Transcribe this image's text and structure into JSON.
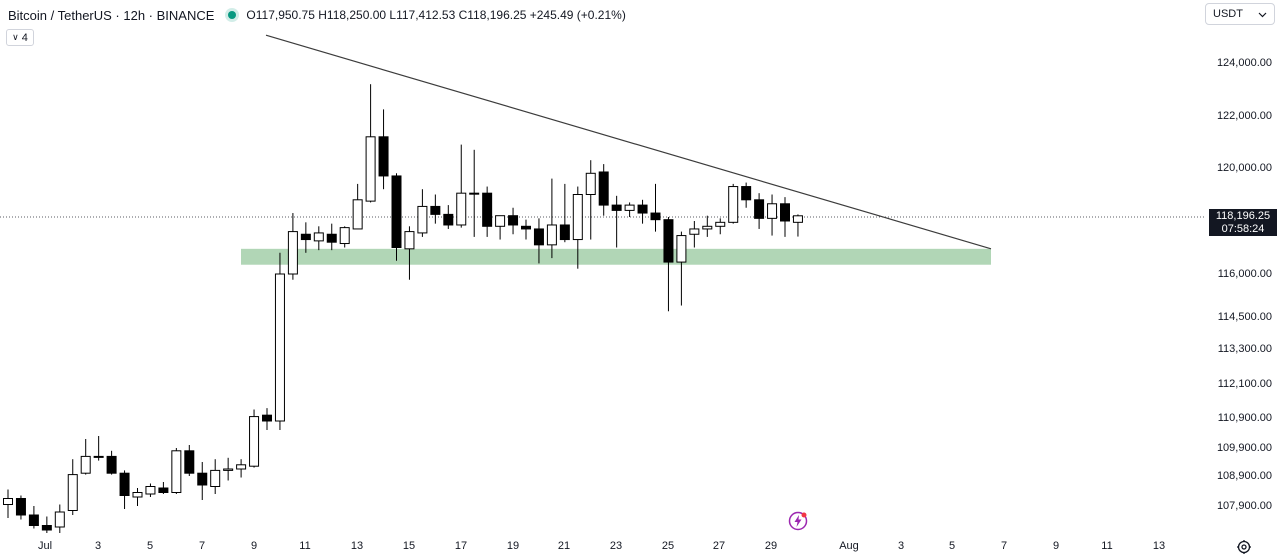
{
  "header": {
    "symbol": "Bitcoin / TetherUS · 12h · BINANCE",
    "ohlc": "O117,950.75 H118,250.00 L117,412.53 C118,196.25 +245.49 (+0.21%)",
    "status_color": "#089981"
  },
  "indicators_chip": {
    "chevron": "∨",
    "count": "4"
  },
  "currency_button": {
    "label": "USDT"
  },
  "last_price": {
    "price": "118,196.25",
    "countdown": "07:58:24"
  },
  "price_labels": [
    "124,000.00",
    "122,000.00",
    "120,000.00",
    "116,000.00",
    "114,500.00",
    "113,300.00",
    "112,100.00",
    "110,900.00",
    "109,900.00",
    "108,900.00",
    "107,900.00"
  ],
  "time_labels": [
    "Jul",
    "3",
    "5",
    "7",
    "9",
    "11",
    "13",
    "15",
    "17",
    "19",
    "21",
    "23",
    "25",
    "27",
    "29",
    "Aug",
    "3",
    "5",
    "7",
    "9",
    "11",
    "13"
  ],
  "icons": {
    "settings": "gear-icon",
    "alert": "lightning-icon"
  },
  "chart_data": {
    "type": "candlestick",
    "symbol": "BTCUSDT",
    "interval": "12h",
    "exchange": "BINANCE",
    "price_range": [
      107100,
      125800
    ],
    "last_close": 118196.25,
    "up_color": "#ffffff",
    "down_color": "#000000",
    "candles": [
      {
        "o": 107950,
        "h": 108450,
        "l": 107500,
        "c": 108150
      },
      {
        "o": 108150,
        "h": 108250,
        "l": 107450,
        "c": 107600
      },
      {
        "o": 107600,
        "h": 107900,
        "l": 107150,
        "c": 107250
      },
      {
        "o": 107250,
        "h": 107550,
        "l": 107000,
        "c": 107100
      },
      {
        "o": 107200,
        "h": 107950,
        "l": 107000,
        "c": 107700
      },
      {
        "o": 107750,
        "h": 109500,
        "l": 107600,
        "c": 108950
      },
      {
        "o": 109000,
        "h": 110200,
        "l": 108950,
        "c": 109600
      },
      {
        "o": 109600,
        "h": 110300,
        "l": 109450,
        "c": 109600
      },
      {
        "o": 109600,
        "h": 109800,
        "l": 108950,
        "c": 109000
      },
      {
        "o": 109000,
        "h": 109100,
        "l": 107800,
        "c": 108250
      },
      {
        "o": 108200,
        "h": 108500,
        "l": 107900,
        "c": 108350
      },
      {
        "o": 108300,
        "h": 108650,
        "l": 108200,
        "c": 108550
      },
      {
        "o": 108500,
        "h": 108700,
        "l": 108300,
        "c": 108350
      },
      {
        "o": 108350,
        "h": 109900,
        "l": 108300,
        "c": 109800
      },
      {
        "o": 109800,
        "h": 110000,
        "l": 108900,
        "c": 109000
      },
      {
        "o": 109000,
        "h": 109400,
        "l": 108100,
        "c": 108600
      },
      {
        "o": 108550,
        "h": 109500,
        "l": 108300,
        "c": 109100
      },
      {
        "o": 109100,
        "h": 109550,
        "l": 108750,
        "c": 109150
      },
      {
        "o": 109150,
        "h": 109500,
        "l": 108850,
        "c": 109300
      },
      {
        "o": 109250,
        "h": 111200,
        "l": 109200,
        "c": 110950
      },
      {
        "o": 111000,
        "h": 111250,
        "l": 110500,
        "c": 110800
      },
      {
        "o": 110800,
        "h": 116800,
        "l": 110500,
        "c": 116000
      },
      {
        "o": 116000,
        "h": 118300,
        "l": 115800,
        "c": 117600
      },
      {
        "o": 117500,
        "h": 117950,
        "l": 116800,
        "c": 117300
      },
      {
        "o": 117250,
        "h": 117800,
        "l": 116900,
        "c": 117550
      },
      {
        "o": 117500,
        "h": 117900,
        "l": 116900,
        "c": 117200
      },
      {
        "o": 117150,
        "h": 117800,
        "l": 117000,
        "c": 117750
      },
      {
        "o": 117700,
        "h": 119400,
        "l": 117700,
        "c": 118800
      },
      {
        "o": 118750,
        "h": 123200,
        "l": 118700,
        "c": 121200
      },
      {
        "o": 121200,
        "h": 122250,
        "l": 119200,
        "c": 119700
      },
      {
        "o": 119700,
        "h": 119800,
        "l": 116500,
        "c": 117000
      },
      {
        "o": 116950,
        "h": 117800,
        "l": 115800,
        "c": 117600
      },
      {
        "o": 117550,
        "h": 119200,
        "l": 117400,
        "c": 118550
      },
      {
        "o": 118550,
        "h": 119000,
        "l": 117900,
        "c": 118250
      },
      {
        "o": 118250,
        "h": 118600,
        "l": 117700,
        "c": 117850
      },
      {
        "o": 117850,
        "h": 120900,
        "l": 117750,
        "c": 119050
      },
      {
        "o": 119050,
        "h": 120700,
        "l": 117400,
        "c": 119050
      },
      {
        "o": 119050,
        "h": 119300,
        "l": 117400,
        "c": 117800
      },
      {
        "o": 117800,
        "h": 118200,
        "l": 117300,
        "c": 118200
      },
      {
        "o": 118200,
        "h": 118500,
        "l": 117500,
        "c": 117850
      },
      {
        "o": 117800,
        "h": 118050,
        "l": 117300,
        "c": 117700
      },
      {
        "o": 117700,
        "h": 118100,
        "l": 116400,
        "c": 117100
      },
      {
        "o": 117100,
        "h": 119600,
        "l": 116600,
        "c": 117850
      },
      {
        "o": 117850,
        "h": 119400,
        "l": 117200,
        "c": 117300
      },
      {
        "o": 117300,
        "h": 119300,
        "l": 116200,
        "c": 119000
      },
      {
        "o": 119000,
        "h": 120300,
        "l": 117300,
        "c": 119800
      },
      {
        "o": 119850,
        "h": 120150,
        "l": 118200,
        "c": 118600
      },
      {
        "o": 118600,
        "h": 118950,
        "l": 117000,
        "c": 118400
      },
      {
        "o": 118400,
        "h": 118700,
        "l": 118150,
        "c": 118600
      },
      {
        "o": 118600,
        "h": 118800,
        "l": 117900,
        "c": 118300
      },
      {
        "o": 118300,
        "h": 119400,
        "l": 117600,
        "c": 118050
      },
      {
        "o": 118050,
        "h": 118150,
        "l": 114700,
        "c": 116450
      },
      {
        "o": 116450,
        "h": 117600,
        "l": 114900,
        "c": 117450
      },
      {
        "o": 117500,
        "h": 118000,
        "l": 117000,
        "c": 117700
      },
      {
        "o": 117700,
        "h": 118200,
        "l": 117400,
        "c": 117800
      },
      {
        "o": 117800,
        "h": 118100,
        "l": 117500,
        "c": 117950
      },
      {
        "o": 117950,
        "h": 119400,
        "l": 117900,
        "c": 119300
      },
      {
        "o": 119300,
        "h": 119450,
        "l": 118500,
        "c": 118800
      },
      {
        "o": 118800,
        "h": 119050,
        "l": 117700,
        "c": 118100
      },
      {
        "o": 118100,
        "h": 119000,
        "l": 117450,
        "c": 118650
      },
      {
        "o": 118650,
        "h": 118900,
        "l": 117400,
        "c": 118000
      },
      {
        "o": 117950,
        "h": 118250,
        "l": 117412.53,
        "c": 118196.25
      }
    ],
    "annotations": {
      "trendline": {
        "start": {
          "date": "Jul 8",
          "price": 125050
        },
        "end": {
          "date": "Aug 6",
          "price": 116950
        }
      },
      "support_zone": {
        "price_low": 116350,
        "price_high": 116950,
        "from": "Jul 8",
        "to": "Aug 6",
        "color": "#a3cfa9"
      }
    }
  }
}
